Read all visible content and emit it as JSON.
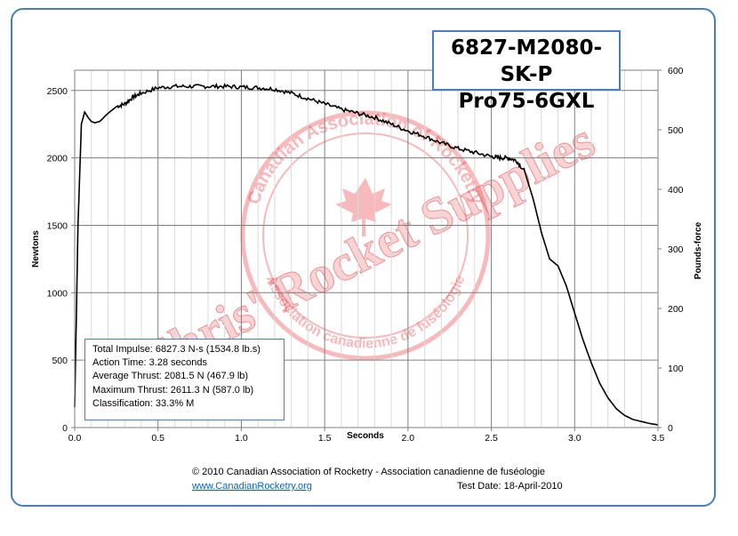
{
  "title": {
    "line1": "6827-M2080-SK-P",
    "line2": "Pro75-6GXL"
  },
  "info": {
    "total_impulse": "Total Impulse: 6827.3 N-s (1534.8 lb.s)",
    "action_time": "Action Time: 3.28 seconds",
    "average_thrust": "Average Thrust: 2081.5 N (467.9 lb)",
    "maximum_thrust": "Maximum Thrust: 2611.3 N (587.0 lb)",
    "classification": "Classification: 33.3% M"
  },
  "watermark": {
    "text": "Chris' Rocket Supplies",
    "seal_outer": "Canadian Association of Rocketry",
    "seal_inner": "Association canadienne de fuséologie"
  },
  "footer": {
    "copyright": "© 2010 Canadian Association of Rocketry - Association canadienne de fuséologie",
    "website": "www.CanadianRocketry.org",
    "test_date": "Test  Date: 18-April-2010"
  },
  "colors": {
    "frame": "#4a7ebb",
    "curve": "#000000",
    "grid": "#7f7f7f",
    "minor_grid": "#d9d9d9",
    "watermark": "#e8373c"
  },
  "chart_data": {
    "type": "line",
    "xlabel": "Seconds",
    "ylabel": "Newtons",
    "y2label": "Pounds-force",
    "xlim": [
      0,
      3.5
    ],
    "ylim": [
      0,
      2650
    ],
    "y2lim": [
      0,
      600
    ],
    "xticks": [
      "0.0",
      "0.5",
      "1.0",
      "1.5",
      "2.0",
      "2.5",
      "3.0",
      "3.5"
    ],
    "yticks": [
      "0",
      "500",
      "1000",
      "1500",
      "2000",
      "2500"
    ],
    "y2ticks": [
      "0",
      "100",
      "200",
      "300",
      "400",
      "500",
      "600"
    ],
    "grid": true,
    "series": [
      {
        "x": [
          0.0,
          0.02,
          0.04,
          0.06,
          0.08,
          0.1,
          0.12,
          0.15,
          0.2,
          0.25,
          0.3,
          0.35,
          0.4,
          0.5,
          0.6,
          0.7,
          0.8,
          0.9,
          1.0,
          1.1,
          1.2,
          1.3,
          1.4,
          1.5,
          1.6,
          1.7,
          1.8,
          1.9,
          2.0,
          2.1,
          2.2,
          2.3,
          2.4,
          2.5,
          2.55,
          2.6,
          2.65,
          2.7,
          2.75,
          2.8,
          2.85,
          2.9,
          2.95,
          3.0,
          3.05,
          3.1,
          3.15,
          3.2,
          3.25,
          3.3,
          3.35,
          3.4,
          3.45,
          3.5
        ],
        "y": [
          150,
          1500,
          2250,
          2340,
          2300,
          2270,
          2260,
          2270,
          2330,
          2380,
          2400,
          2450,
          2480,
          2520,
          2530,
          2530,
          2530,
          2530,
          2525,
          2520,
          2510,
          2480,
          2440,
          2400,
          2360,
          2330,
          2300,
          2250,
          2200,
          2160,
          2110,
          2070,
          2040,
          2010,
          2000,
          2000,
          1980,
          1900,
          1700,
          1450,
          1250,
          1200,
          1050,
          850,
          650,
          480,
          330,
          220,
          140,
          90,
          60,
          45,
          30,
          20
        ]
      }
    ]
  }
}
